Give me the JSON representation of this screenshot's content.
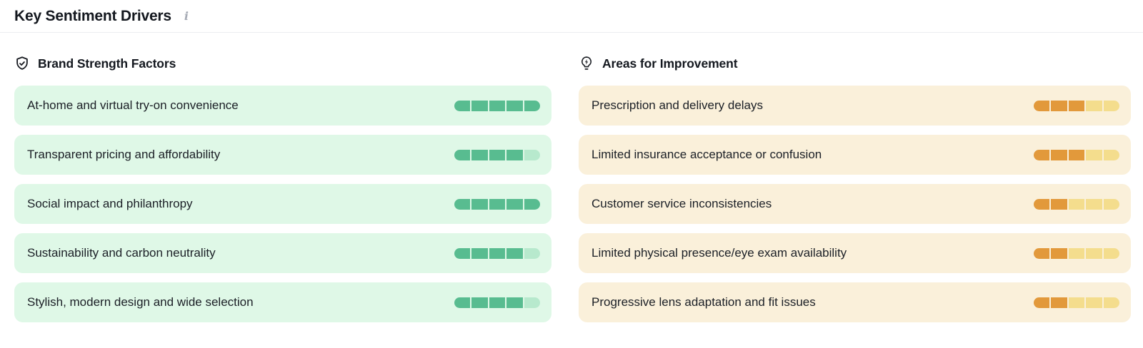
{
  "header": {
    "title": "Key Sentiment Drivers",
    "info_icon": "i"
  },
  "columns": [
    {
      "id": "strengths",
      "icon": "shield-check-icon",
      "title": "Brand Strength Factors",
      "theme": {
        "card_bg": "#dff8e7",
        "seg_filled": "#58bc90",
        "seg_empty": "#b7e9cd"
      },
      "items": [
        {
          "label": "At-home and virtual try-on convenience",
          "score": 5,
          "max": 5
        },
        {
          "label": "Transparent pricing and affordability",
          "score": 4,
          "max": 5
        },
        {
          "label": "Social impact and philanthropy",
          "score": 5,
          "max": 5
        },
        {
          "label": "Sustainability and carbon neutrality",
          "score": 4,
          "max": 5
        },
        {
          "label": "Stylish, modern design and wide selection",
          "score": 4,
          "max": 5
        }
      ]
    },
    {
      "id": "improvements",
      "icon": "lightbulb-bolt-icon",
      "title": "Areas for Improvement",
      "theme": {
        "card_bg": "#faf0da",
        "seg_filled": "#e2993b",
        "seg_empty": "#f4dd8d"
      },
      "items": [
        {
          "label": "Prescription and delivery delays",
          "score": 3,
          "max": 5
        },
        {
          "label": "Limited insurance acceptance or confusion",
          "score": 3,
          "max": 5
        },
        {
          "label": "Customer service inconsistencies",
          "score": 2,
          "max": 5
        },
        {
          "label": "Limited physical presence/eye exam availability",
          "score": 2,
          "max": 5
        },
        {
          "label": "Progressive lens adaptation and fit issues",
          "score": 2,
          "max": 5
        }
      ]
    }
  ]
}
